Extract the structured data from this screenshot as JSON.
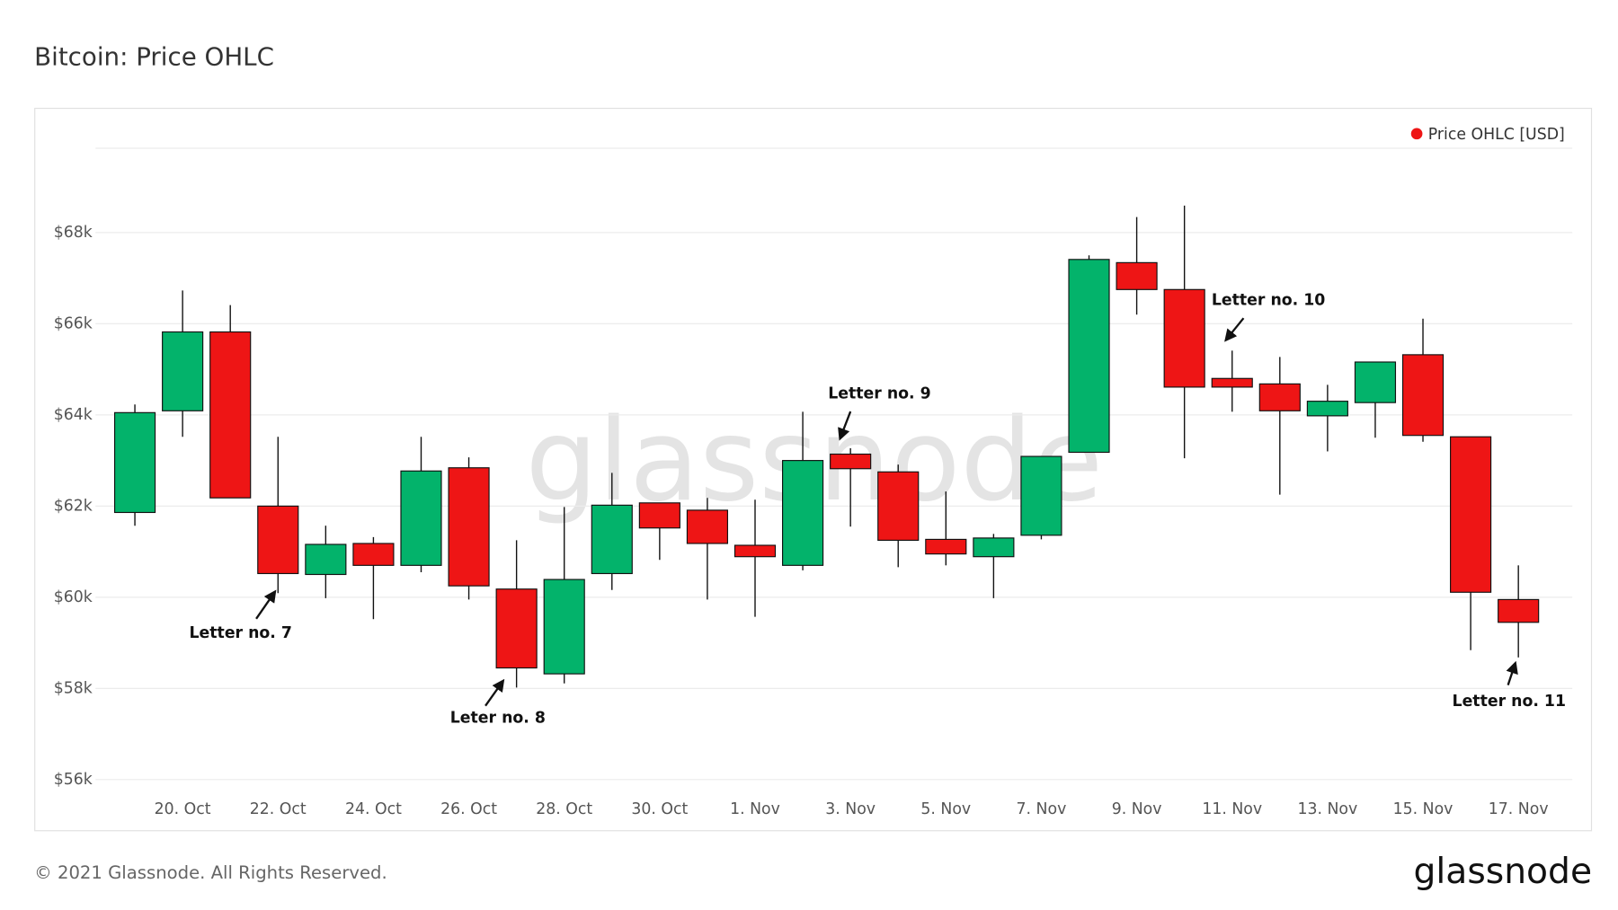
{
  "chart_data": {
    "type": "candlestick",
    "title": "Bitcoin: Price OHLC",
    "categories": [
      null,
      "20. Oct",
      null,
      "22. Oct",
      null,
      "24. Oct",
      null,
      "26. Oct",
      null,
      "28. Oct",
      null,
      "30. Oct",
      null,
      "1. Nov",
      null,
      "3. Nov",
      null,
      "5. Nov",
      null,
      "7. Nov",
      null,
      "9. Nov",
      null,
      "11. Nov",
      null,
      "13. Nov",
      null,
      "15. Nov",
      null,
      "17. Nov"
    ],
    "series": [
      {
        "name": "Price OHLC [USD]",
        "color": "#ee1515",
        "up_color": "#03b36b",
        "open": [
          61860,
          64090,
          65820,
          62000,
          60500,
          61180,
          60700,
          62840,
          60180,
          58320,
          60520,
          62070,
          61910,
          61140,
          60700,
          63140,
          62750,
          61270,
          60890,
          61360,
          63180,
          67340,
          66750,
          64800,
          64680,
          63980,
          64270,
          65320,
          63520,
          59950
        ],
        "high": [
          64230,
          66730,
          66410,
          63520,
          61570,
          61320,
          63520,
          63070,
          61250,
          61980,
          62730,
          62070,
          62180,
          62140,
          64070,
          63270,
          62910,
          62320,
          61390,
          63090,
          67500,
          68340,
          68590,
          65410,
          65270,
          64660,
          65160,
          66110,
          63520,
          60700
        ],
        "low": [
          61570,
          63520,
          62180,
          60090,
          59980,
          59520,
          60550,
          59950,
          58020,
          58110,
          60160,
          60820,
          59950,
          59570,
          60590,
          61550,
          60660,
          60700,
          59980,
          61270,
          63180,
          66200,
          63050,
          64070,
          62250,
          63200,
          63500,
          63410,
          58840,
          58680
        ],
        "close": [
          64050,
          65820,
          62180,
          60520,
          61160,
          60700,
          62770,
          60250,
          58450,
          60390,
          62020,
          61520,
          61180,
          60890,
          63000,
          62820,
          61250,
          60950,
          61300,
          63090,
          67410,
          66750,
          64610,
          64610,
          64090,
          64300,
          65160,
          63550,
          60110,
          59450
        ]
      }
    ],
    "ylim": [
      55800,
      69850
    ],
    "yticks": [
      {
        "value": 56000,
        "label": "$56k"
      },
      {
        "value": 58000,
        "label": "$58k"
      },
      {
        "value": 60000,
        "label": "$60k"
      },
      {
        "value": 62000,
        "label": "$62k"
      },
      {
        "value": 64000,
        "label": "$64k"
      },
      {
        "value": 66000,
        "label": "$66k"
      },
      {
        "value": 68000,
        "label": "$68k"
      }
    ],
    "grid": true,
    "legend": "top-right",
    "annotations": [
      "Letter no. 7",
      "Leter no. 8",
      "Letter no. 9",
      "Letter no. 10",
      "Letter no. 11"
    ],
    "watermark": "glassnode",
    "footer": "© 2021 Glassnode. All Rights Reserved.",
    "logo": "glassnode"
  }
}
